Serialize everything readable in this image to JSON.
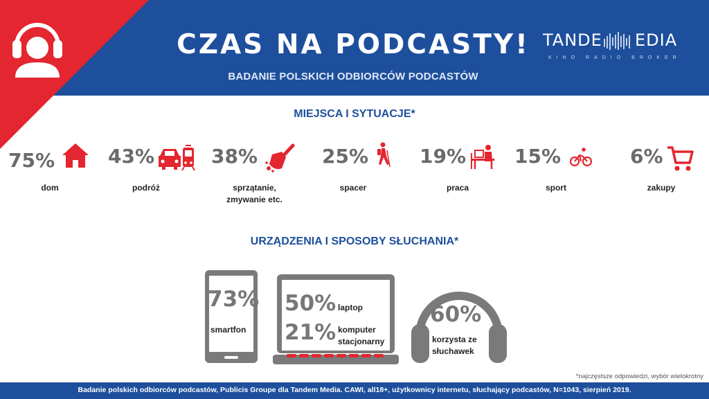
{
  "header": {
    "title": "CZAS NA PODCASTY!",
    "subtitle": "BADANIE POLSKICH ODBIORCÓW PODCASTÓW",
    "logo": {
      "word_left": "TANDE",
      "word_right": "EDIA",
      "tagline": "KINO RADIO BROKER"
    }
  },
  "places": {
    "title": "MIEJSCA I SYTUACJE*",
    "items": [
      {
        "pct": "75%",
        "label": "dom",
        "icon": "house-icon"
      },
      {
        "pct": "43%",
        "label": "podróż",
        "icon": "car-tram-icon"
      },
      {
        "pct": "38%",
        "label": "sprzątanie,",
        "label2": "zmywanie etc.",
        "icon": "cleaning-icon"
      },
      {
        "pct": "25%",
        "label": "spacer",
        "icon": "hiker-icon"
      },
      {
        "pct": "19%",
        "label": "praca",
        "icon": "desk-worker-icon"
      },
      {
        "pct": "15%",
        "label": "sport",
        "icon": "cyclist-icon"
      },
      {
        "pct": "6%",
        "label": "zakupy",
        "icon": "shopping-cart-icon"
      }
    ]
  },
  "devices": {
    "title": "URZĄDZENIA I SPOSOBY SŁUCHANIA*",
    "smartphone": {
      "pct": "73%",
      "label": "smartfon"
    },
    "laptop": {
      "pct": "50%",
      "label": "laptop"
    },
    "desktop": {
      "pct": "21%",
      "label": "komputer",
      "label2": "stacjonarny"
    },
    "headphones": {
      "pct": "60%",
      "label": "korzysta ze",
      "label2": "słuchawek"
    }
  },
  "colors": {
    "blue": "#1d4f9c",
    "red": "#e3262f",
    "gray": "#6a6a6a"
  },
  "footnote": "*najczęstsze odpowiedzi, wybór wielokrotny",
  "footer": "Badanie polskich odbiorców podcastów, Publicis Groupe dla Tandem Media.  CAWI, all18+, użytkownicy internetu, słuchający podcastów, N=1043, sierpień 2019."
}
